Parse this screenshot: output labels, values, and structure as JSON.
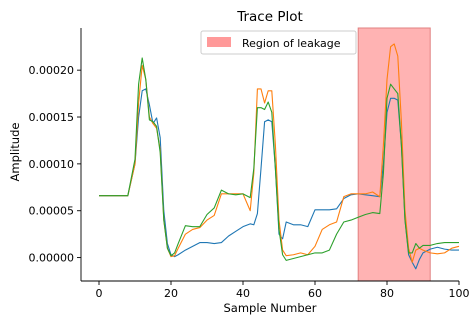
{
  "chart_data": {
    "type": "line",
    "title": "Trace Plot",
    "xlabel": "Sample Number",
    "ylabel": "Amplitude",
    "xlim": [
      -5,
      100
    ],
    "ylim": [
      -2.5e-05,
      0.000245
    ],
    "xticks": [
      {
        "value": 0,
        "label": "0"
      },
      {
        "value": 20,
        "label": "20"
      },
      {
        "value": 40,
        "label": "40"
      },
      {
        "value": 60,
        "label": "60"
      },
      {
        "value": 80,
        "label": "80"
      },
      {
        "value": 100,
        "label": "100"
      }
    ],
    "yticks": [
      {
        "value": 0,
        "label": "0.00000"
      },
      {
        "value": 5e-05,
        "label": "0.00005"
      },
      {
        "value": 0.0001,
        "label": "0.00010"
      },
      {
        "value": 0.00015,
        "label": "0.00015"
      },
      {
        "value": 0.0002,
        "label": "0.00020"
      }
    ],
    "grid": false,
    "legend_position": "top-center",
    "region": {
      "x0": 72,
      "x1": 92,
      "label": "Region of leakage",
      "color": "#ff9999"
    },
    "series": [
      {
        "color": "#1f77b4",
        "x": [
          0,
          4,
          8,
          10,
          11,
          12,
          13,
          14,
          15,
          16,
          17,
          18,
          19,
          20,
          21,
          22,
          24,
          26,
          28,
          30,
          32,
          34,
          36,
          38,
          40,
          42,
          43,
          44,
          45,
          46,
          47,
          48,
          49,
          50,
          51,
          52,
          54,
          56,
          58,
          60,
          62,
          64,
          66,
          68,
          70,
          72,
          74,
          76,
          78,
          79,
          80,
          81,
          82,
          83,
          84,
          85,
          86,
          87,
          88,
          89,
          90,
          92,
          94,
          96,
          98,
          100
        ],
        "values": [
          6.6e-05,
          6.6e-05,
          6.6e-05,
          0.0001,
          0.00015,
          0.000178,
          0.00018,
          0.000163,
          0.000143,
          0.000149,
          0.000128,
          5e-05,
          1.5e-05,
          3e-06,
          1e-06,
          3e-06,
          8e-06,
          1.2e-05,
          1.6e-05,
          1.6e-05,
          1.5e-05,
          1.6e-05,
          2.3e-05,
          2.8e-05,
          3.3e-05,
          3.6e-05,
          3.5e-05,
          4.7e-05,
          9.5e-05,
          0.000145,
          0.000147,
          0.000145,
          9.5e-05,
          2.5e-05,
          2e-05,
          3.8e-05,
          3.5e-05,
          3.5e-05,
          3.3e-05,
          5.1e-05,
          5.1e-05,
          5.1e-05,
          5.2e-05,
          6.3e-05,
          6.7e-05,
          6.8e-05,
          6.7e-05,
          6.6e-05,
          6.5e-05,
          0.0001,
          0.000155,
          0.00017,
          0.00017,
          0.000168,
          0.00012,
          4e-05,
          3e-06,
          -5e-06,
          -1.2e-05,
          -2e-06,
          5e-06,
          9e-06,
          1.1e-05,
          9e-06,
          8e-06,
          8e-06
        ]
      },
      {
        "color": "#ff7f0e",
        "x": [
          0,
          4,
          8,
          10,
          11,
          12,
          13,
          14,
          15,
          16,
          17,
          18,
          19,
          20,
          21,
          22,
          24,
          26,
          28,
          30,
          32,
          34,
          36,
          38,
          40,
          42,
          43,
          44,
          45,
          46,
          47,
          48,
          49,
          50,
          51,
          52,
          54,
          56,
          58,
          60,
          62,
          64,
          66,
          68,
          70,
          72,
          74,
          76,
          78,
          79,
          80,
          81,
          82,
          83,
          84,
          85,
          86,
          87,
          88,
          89,
          90,
          92,
          94,
          96,
          98,
          100
        ],
        "values": [
          6.6e-05,
          6.6e-05,
          6.6e-05,
          0.0001,
          0.000165,
          0.000205,
          0.00019,
          0.00015,
          0.000143,
          0.000138,
          0.000115,
          4e-05,
          1e-05,
          1e-06,
          2e-06,
          1e-05,
          2.5e-05,
          3e-05,
          3.2e-05,
          4e-05,
          4.5e-05,
          6.8e-05,
          6.8e-05,
          6.8e-05,
          6.8e-05,
          5e-05,
          9e-05,
          0.00018,
          0.00018,
          0.000165,
          0.000178,
          0.000178,
          0.00012,
          4e-05,
          8e-06,
          2e-06,
          3e-06,
          5e-06,
          3e-06,
          1.2e-05,
          3e-05,
          3.5e-05,
          3.8e-05,
          6.5e-05,
          6.8e-05,
          6.8e-05,
          6.8e-05,
          7e-05,
          6.5e-05,
          0.00012,
          0.00019,
          0.000225,
          0.000228,
          0.000215,
          0.000145,
          5e-05,
          1e-05,
          -5e-06,
          8e-06,
          1e-05,
          8e-06,
          5e-06,
          4e-06,
          5e-06,
          1e-05,
          1.2e-05
        ]
      },
      {
        "color": "#2ca02c",
        "x": [
          0,
          4,
          8,
          10,
          11,
          12,
          13,
          14,
          15,
          16,
          17,
          18,
          19,
          20,
          21,
          22,
          24,
          26,
          28,
          30,
          32,
          34,
          36,
          38,
          40,
          42,
          43,
          44,
          45,
          46,
          47,
          48,
          49,
          50,
          51,
          52,
          54,
          56,
          58,
          60,
          62,
          64,
          66,
          68,
          70,
          72,
          74,
          76,
          78,
          79,
          80,
          81,
          82,
          83,
          84,
          85,
          86,
          87,
          88,
          89,
          90,
          92,
          94,
          96,
          98,
          100
        ],
        "values": [
          6.6e-05,
          6.6e-05,
          6.6e-05,
          0.000105,
          0.000185,
          0.000213,
          0.00019,
          0.000147,
          0.000145,
          0.00014,
          0.000112,
          4e-05,
          1e-05,
          2e-06,
          5e-06,
          1.5e-05,
          3.4e-05,
          3.3e-05,
          3.3e-05,
          4.6e-05,
          5.3e-05,
          7.2e-05,
          6.8e-05,
          6.7e-05,
          6.8e-05,
          6.4e-05,
          9.5e-05,
          0.00016,
          0.00016,
          0.000158,
          0.000166,
          0.000155,
          9.5e-05,
          3e-05,
          3e-06,
          -3e-06,
          -1e-06,
          1e-06,
          3e-06,
          5e-06,
          5e-06,
          8e-06,
          2.5e-05,
          3.8e-05,
          4e-05,
          4.3e-05,
          4.6e-05,
          4.8e-05,
          4.7e-05,
          9e-05,
          0.00017,
          0.000185,
          0.00018,
          0.000175,
          0.00012,
          4e-05,
          5e-06,
          5e-06,
          1.5e-05,
          1e-05,
          1.3e-05,
          1.3e-05,
          1.5e-05,
          1.6e-05,
          1.6e-05,
          1.6e-05
        ]
      }
    ]
  }
}
